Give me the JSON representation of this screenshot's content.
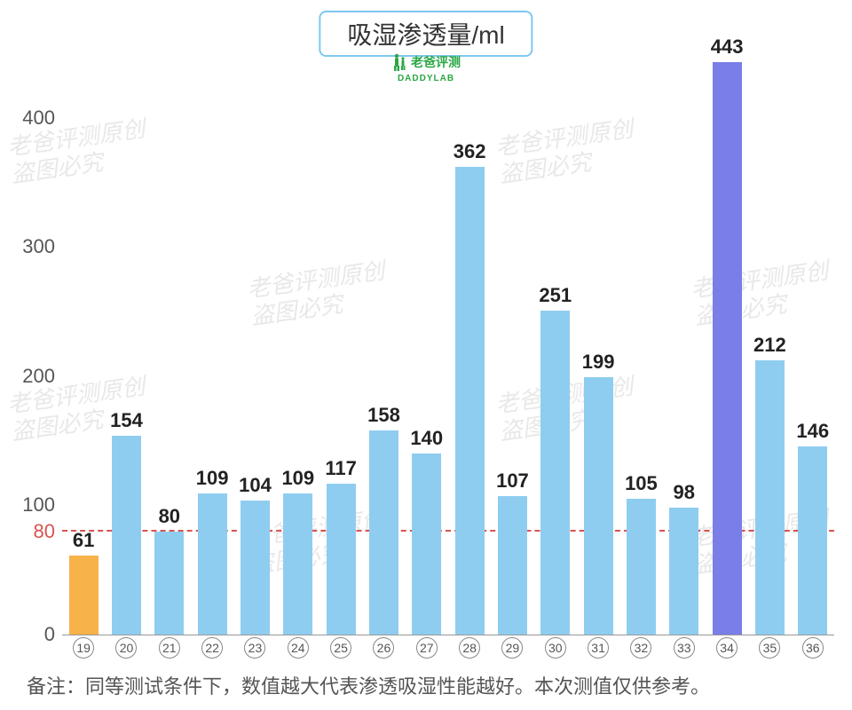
{
  "chart": {
    "type": "bar",
    "title": "吸湿渗透量/ml",
    "logo_text": "老爸评测",
    "logo_sub": "DADDYLAB",
    "footnote": "备注：同等测试条件下，数值越大代表渗透吸湿性能越好。本次测值仅供参考。",
    "y_axis": {
      "ticks": [
        0,
        100,
        200,
        300,
        400
      ],
      "color": "#555555",
      "fontsize": 22
    },
    "reference_line": {
      "value": 80,
      "label": "80",
      "color": "#d9534f",
      "dash": "4 4"
    },
    "x_categories": [
      "19",
      "20",
      "21",
      "22",
      "23",
      "24",
      "25",
      "26",
      "27",
      "28",
      "29",
      "30",
      "31",
      "32",
      "33",
      "34",
      "35",
      "36"
    ],
    "values": [
      61,
      154,
      80,
      109,
      104,
      109,
      117,
      158,
      140,
      362,
      107,
      251,
      199,
      105,
      98,
      443,
      212,
      146
    ],
    "bar_colors": [
      "#f7b24a",
      "#8fcdf0",
      "#8fcdf0",
      "#8fcdf0",
      "#8fcdf0",
      "#8fcdf0",
      "#8fcdf0",
      "#8fcdf0",
      "#8fcdf0",
      "#8fcdf0",
      "#8fcdf0",
      "#8fcdf0",
      "#8fcdf0",
      "#8fcdf0",
      "#8fcdf0",
      "#7a7ee8",
      "#8fcdf0",
      "#8fcdf0"
    ],
    "value_label_fontsize": 22,
    "value_label_color": "#222222",
    "ymax": 450,
    "bar_width_ratio": 0.68,
    "background_color": "#ffffff",
    "title_border_color": "#7ec8f0",
    "title_fontsize": 28,
    "logo_color": "#2aa744",
    "x_label_circle_border": "#888888",
    "watermark_text_1": "老爸评测原创",
    "watermark_text_2": "盗图必究",
    "watermark_color": "#e8e8e8"
  }
}
